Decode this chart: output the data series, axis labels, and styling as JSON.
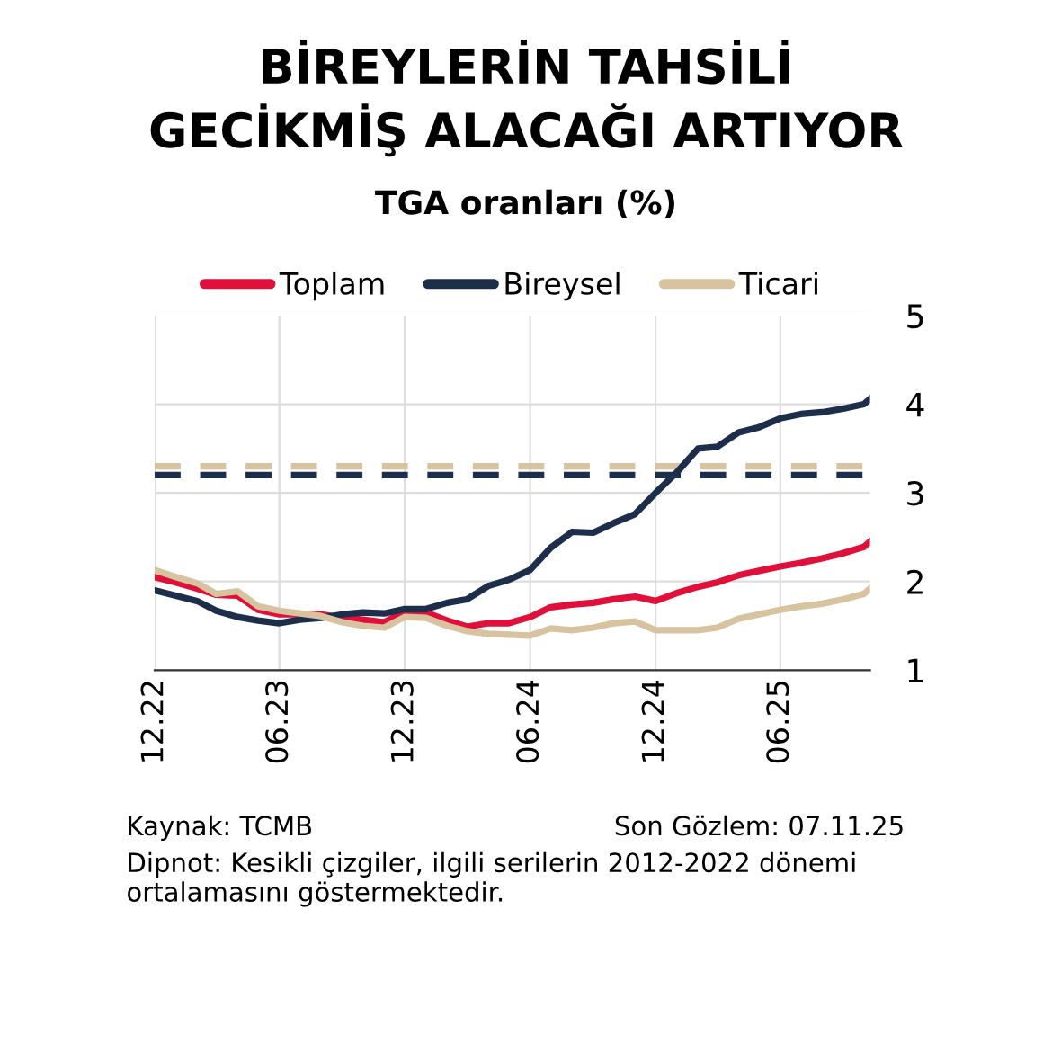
{
  "chart_data": {
    "type": "line",
    "title": "BİREYLERİN TAHSİLİ\nGECİKMİŞ ALACAĞI ARTIYOR",
    "subtitle": "TGA oranları (%)",
    "x": [
      "2022-12-01",
      "2023-01-01",
      "2023-02-01",
      "2023-03-01",
      "2023-04-01",
      "2023-05-01",
      "2023-06-01",
      "2023-07-01",
      "2023-08-01",
      "2023-09-01",
      "2023-10-01",
      "2023-11-01",
      "2023-12-01",
      "2024-01-01",
      "2024-02-01",
      "2024-03-01",
      "2024-04-01",
      "2024-05-01",
      "2024-06-01",
      "2024-07-01",
      "2024-08-01",
      "2024-09-01",
      "2024-10-01",
      "2024-11-01",
      "2024-12-01",
      "2025-01-01",
      "2025-02-01",
      "2025-03-01",
      "2025-04-01",
      "2025-05-01",
      "2025-06-01",
      "2025-07-01",
      "2025-08-01",
      "2025-09-01",
      "2025-10-01",
      "2025-10-10"
    ],
    "series": [
      {
        "name": "Toplam",
        "color": "#e0103a",
        "values": [
          2.05,
          1.99,
          1.92,
          1.85,
          1.84,
          1.68,
          1.63,
          1.63,
          1.63,
          1.59,
          1.57,
          1.54,
          1.66,
          1.65,
          1.56,
          1.49,
          1.53,
          1.53,
          1.6,
          1.71,
          1.74,
          1.76,
          1.8,
          1.83,
          1.78,
          1.87,
          1.94,
          1.99,
          2.07,
          2.12,
          2.17,
          2.21,
          2.26,
          2.32,
          2.39,
          2.45
        ]
      },
      {
        "name": "Bireysel",
        "color": "#1c2e4a",
        "values": [
          1.9,
          1.84,
          1.78,
          1.67,
          1.6,
          1.56,
          1.53,
          1.57,
          1.59,
          1.63,
          1.65,
          1.64,
          1.69,
          1.69,
          1.76,
          1.8,
          1.95,
          2.02,
          2.13,
          2.38,
          2.56,
          2.55,
          2.66,
          2.76,
          3.0,
          3.23,
          3.5,
          3.52,
          3.68,
          3.74,
          3.84,
          3.89,
          3.91,
          3.95,
          4.0,
          4.06
        ]
      },
      {
        "name": "Ticari",
        "color": "#d8c3a0",
        "values": [
          2.13,
          2.05,
          1.98,
          1.86,
          1.89,
          1.72,
          1.67,
          1.64,
          1.61,
          1.54,
          1.5,
          1.48,
          1.6,
          1.59,
          1.5,
          1.44,
          1.41,
          1.4,
          1.39,
          1.47,
          1.45,
          1.48,
          1.53,
          1.55,
          1.45,
          1.45,
          1.45,
          1.48,
          1.58,
          1.63,
          1.68,
          1.72,
          1.75,
          1.8,
          1.86,
          1.92
        ]
      }
    ],
    "ref_lines": [
      {
        "axis": "y",
        "value": 3.3,
        "color": "#d8c3a0",
        "line_style": "dashed"
      },
      {
        "axis": "y",
        "value": 3.2,
        "color": "#1c2e4a",
        "line_style": "dashed"
      }
    ],
    "xlim": [
      "2022-12-01",
      "2025-10-10"
    ],
    "xticks": [
      {
        "value": "2022-12-01",
        "label": "12.22"
      },
      {
        "value": "2023-06-01",
        "label": "06.23"
      },
      {
        "value": "2023-12-01",
        "label": "12.23"
      },
      {
        "value": "2024-06-01",
        "label": "06.24"
      },
      {
        "value": "2024-12-01",
        "label": "12.24"
      },
      {
        "value": "2025-06-01",
        "label": "06.25"
      }
    ],
    "ylim": [
      1,
      5
    ],
    "yticks": [
      1,
      2,
      3,
      4,
      5
    ],
    "grid": true,
    "legend": "top",
    "marker": "none",
    "line_style": "solid",
    "annotations": [
      "Kaynak: TCMB",
      "Son Gözlem: 07.11.25",
      "Dipnot: Kesikli çizgiler, ilgili serilerin 2012-2022 dönemi ortalamasını göstermektedir."
    ]
  }
}
